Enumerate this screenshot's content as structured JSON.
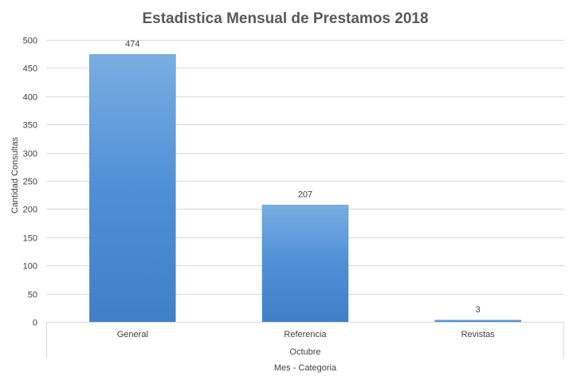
{
  "chart_data": {
    "type": "bar",
    "title": "Estadistica Mensual de Prestamos 2018",
    "categories": [
      "General",
      "Referencia",
      "Revistas"
    ],
    "group_label": "Octubre",
    "series": [
      {
        "name": "Cantidad Consultas",
        "values": [
          474,
          207,
          3
        ]
      }
    ],
    "data_labels": [
      "474",
      "207",
      "3"
    ],
    "xlabel": "Mes - Categoria",
    "ylabel": "Cantidad Consultas",
    "ylim": [
      0,
      500
    ],
    "y_ticks": [
      0,
      50,
      100,
      150,
      200,
      250,
      300,
      350,
      400,
      450,
      500
    ],
    "y_tick_labels": [
      "0",
      "50",
      "100",
      "150",
      "200",
      "250",
      "300",
      "350",
      "400",
      "450",
      "500"
    ],
    "grid": true,
    "bar_color": "#4f8fd6",
    "bar_color_top": "#7aaee3",
    "bar_color_bottom": "#3f80c8"
  }
}
